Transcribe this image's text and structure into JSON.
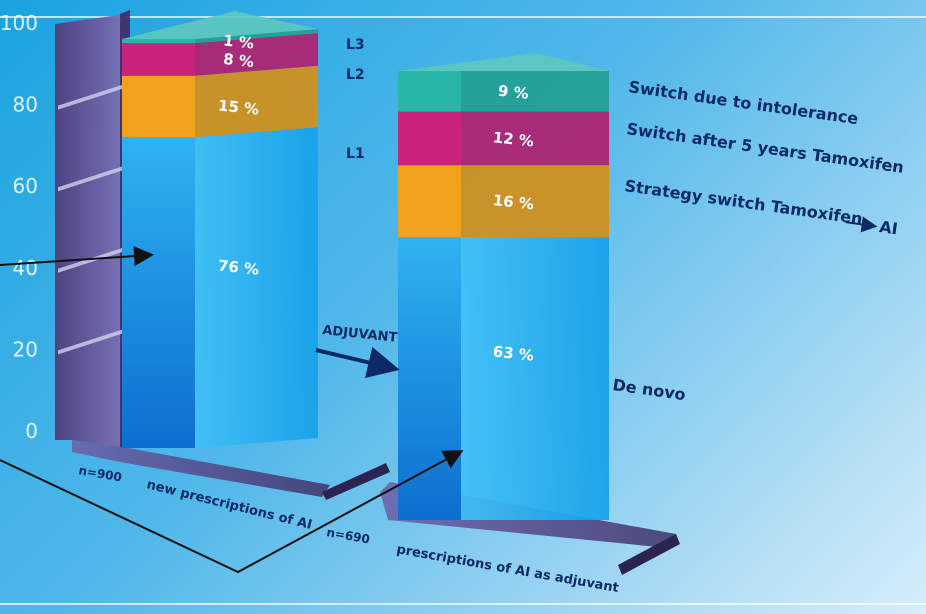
{
  "chart_data": {
    "type": "bar",
    "stacked": true,
    "title": "",
    "ylim": [
      0,
      100
    ],
    "yticks": [
      "0",
      "20",
      "40",
      "60",
      "80",
      "100"
    ],
    "categories": [
      {
        "n_label": "n=900",
        "label": "new prescriptions of AI"
      },
      {
        "n_label": "n=690",
        "label": "prescriptions of AI as adjuvant"
      }
    ],
    "series": [
      {
        "name": "De novo",
        "values": [
          76,
          63
        ],
        "value_labels": [
          "76 %",
          "63 %"
        ],
        "color": "#1a8fe0"
      },
      {
        "name": "Strategy switch Tamoxifen → AI",
        "values": [
          15,
          16
        ],
        "value_labels": [
          "15 %",
          "16 %"
        ],
        "color": "#f0a21c"
      },
      {
        "name": "Switch after 5 years Tamoxifen",
        "values": [
          8,
          12
        ],
        "value_labels": [
          "8 %",
          "12 %"
        ],
        "color": "#c9237e"
      },
      {
        "name": "Switch due to intolerance",
        "values": [
          1,
          9
        ],
        "value_labels": [
          "1 %",
          "9 %"
        ],
        "color": "#27b6a8"
      }
    ],
    "level_labels": [
      "L1",
      "L2",
      "L3"
    ],
    "legend": {
      "position": "right",
      "intolerance": "Switch due to intolerance",
      "five_years": "Switch after 5 years Tamoxifen",
      "strategy": "Strategy switch Tamoxifen",
      "strategy_target": "AI",
      "de_novo": "De novo"
    },
    "annotation": "ADJUVANT"
  }
}
